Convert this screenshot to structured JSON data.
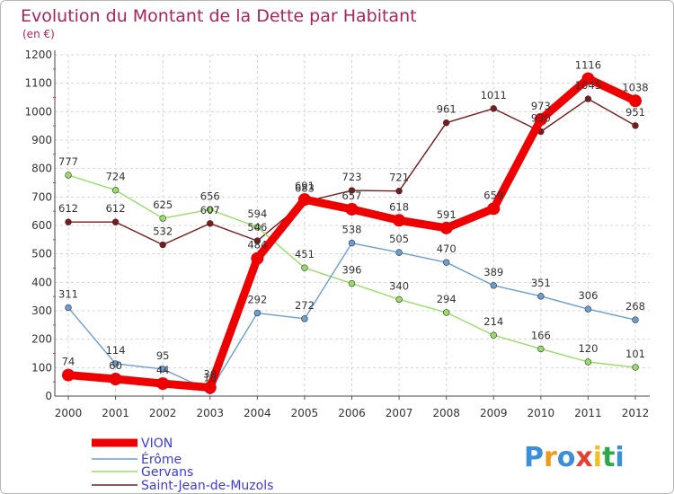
{
  "chart_data": {
    "type": "line",
    "title": "Evolution du Montant de la Dette par Habitant",
    "subtitle": "(en €)",
    "categories": [
      "2000",
      "2001",
      "2002",
      "2003",
      "2004",
      "2005",
      "2006",
      "2007",
      "2008",
      "2009",
      "2010",
      "2011",
      "2012"
    ],
    "ylim": [
      0,
      1200
    ],
    "yticks": [
      0,
      100,
      200,
      300,
      400,
      500,
      600,
      700,
      800,
      900,
      1000,
      1100,
      1200
    ],
    "grid": true,
    "legend_position": "bottom-left",
    "series": [
      {
        "name": "VION",
        "color": "#ee0000",
        "values": [
          74,
          60,
          44,
          30,
          484,
          691,
          657,
          618,
          591,
          659,
          973,
          1116,
          1038
        ]
      },
      {
        "name": "Érôme",
        "color": "#6a9ed0",
        "values": [
          311,
          114,
          95,
          18,
          292,
          272,
          538,
          505,
          470,
          389,
          351,
          306,
          268
        ]
      },
      {
        "name": "Gervans",
        "color": "#99dd66",
        "values": [
          777,
          724,
          625,
          656,
          594,
          451,
          396,
          340,
          294,
          214,
          166,
          120,
          101
        ]
      },
      {
        "name": "Saint-Jean-de-Muzols",
        "color": "#7a1a1a",
        "values": [
          612,
          612,
          532,
          607,
          546,
          683,
          723,
          721,
          961,
          1011,
          930,
          1045,
          951
        ]
      }
    ]
  },
  "brand": {
    "letters": [
      "P",
      "r",
      "o",
      "x",
      "i",
      "t",
      "i"
    ],
    "colors": [
      "#3a8fd8",
      "#f09a1a",
      "#3a8fd8",
      "#e84030",
      "#f0c020",
      "#2aa84a",
      "#3a8fd8"
    ]
  }
}
